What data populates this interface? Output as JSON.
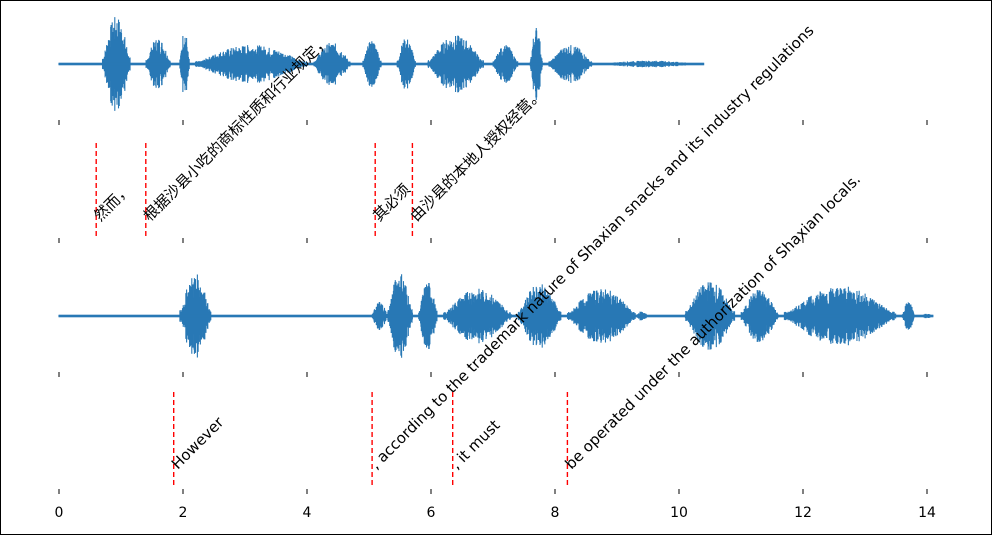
{
  "chart_data": [
    {
      "type": "line",
      "panel": "chinese-audio",
      "series": [
        {
          "color": "#2878b5",
          "duration_s": 10.4
        }
      ],
      "xlim": [
        0,
        14.4
      ],
      "segments": [
        {
          "time": 0.6,
          "text": "然而，"
        },
        {
          "time": 1.4,
          "text": "根据沙县小吃的商标性质和行业规定，"
        },
        {
          "time": 5.1,
          "text": "其必须"
        },
        {
          "time": 5.7,
          "text": "由沙县的本地人授权经营。"
        }
      ],
      "marker_color": "#ff0000"
    },
    {
      "type": "line",
      "panel": "english-audio",
      "series": [
        {
          "color": "#2878b5",
          "duration_s": 14.1
        }
      ],
      "xlim": [
        0,
        14.4
      ],
      "segments": [
        {
          "time": 1.85,
          "text": "However"
        },
        {
          "time": 5.05,
          "text": ", according to the trademark nature of Shaxian snacks and its industry regulations"
        },
        {
          "time": 6.35,
          "text": ", it must"
        },
        {
          "time": 8.2,
          "text": "be operated under the authorization of Shaxian locals."
        }
      ],
      "xticks": [
        0,
        2,
        4,
        6,
        8,
        10,
        12,
        14
      ],
      "marker_color": "#ff0000"
    }
  ]
}
